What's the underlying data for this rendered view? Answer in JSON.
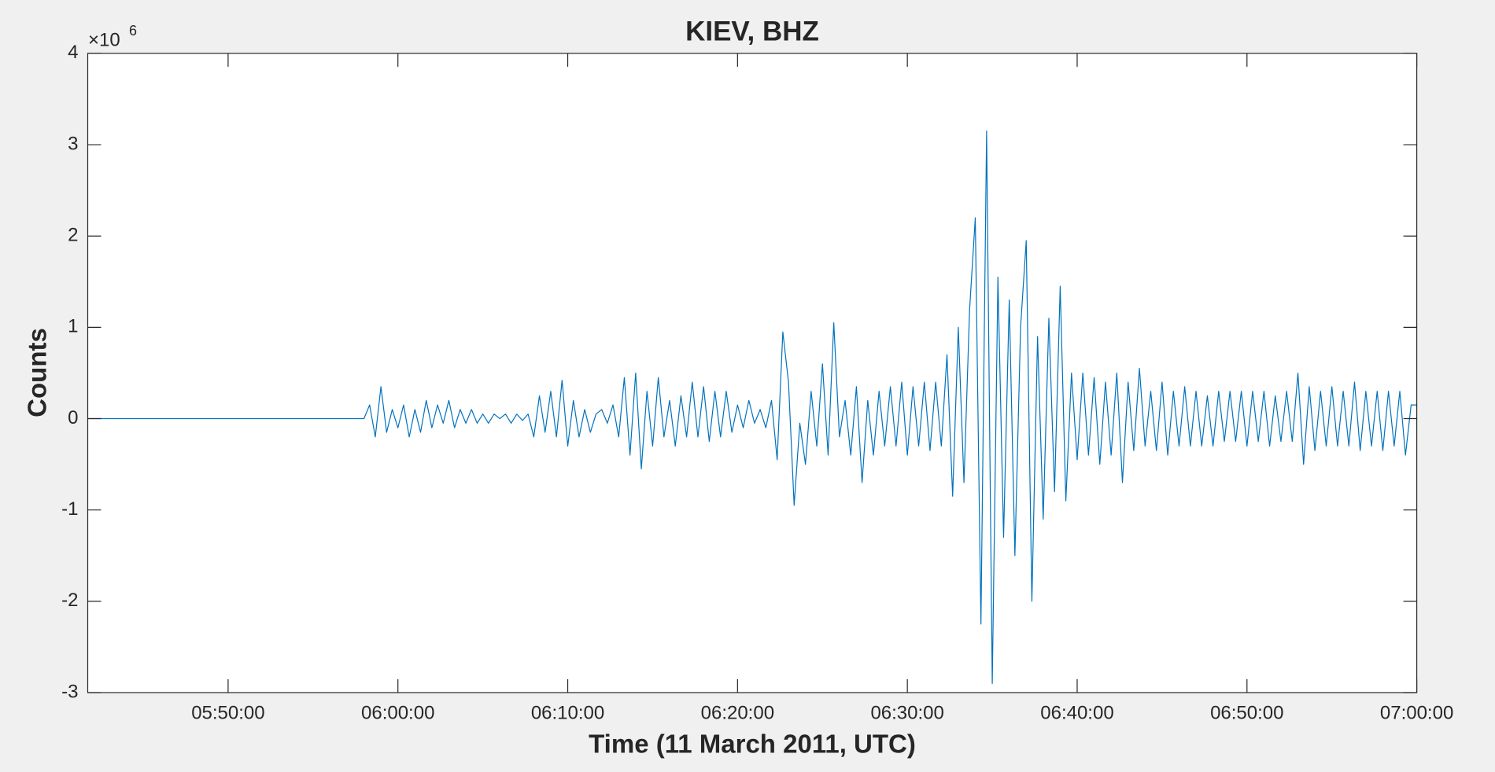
{
  "chart_data": {
    "type": "line",
    "title": "KIEV, BHZ",
    "xlabel": "Time (11 March 2011, UTC)",
    "ylabel": "Counts",
    "y_multiplier": "×10",
    "y_multiplier_exponent": "6",
    "color": "#0072bd",
    "xlim": [
      "05:41:44",
      "07:00:00"
    ],
    "xticks": [
      "05:50:00",
      "06:00:00",
      "06:10:00",
      "06:20:00",
      "06:30:00",
      "06:40:00",
      "06:50:00",
      "07:00:00"
    ],
    "ylim": [
      -3,
      4
    ],
    "yticks": [
      -3,
      -2,
      -1,
      0,
      1,
      2,
      3,
      4
    ],
    "x": [
      "05:41:44",
      "05:58:00",
      "05:58:20",
      "05:58:40",
      "05:59:00",
      "05:59:20",
      "05:59:40",
      "06:00:00",
      "06:00:20",
      "06:00:40",
      "06:01:00",
      "06:01:20",
      "06:01:40",
      "06:02:00",
      "06:02:20",
      "06:02:40",
      "06:03:00",
      "06:03:20",
      "06:03:40",
      "06:04:00",
      "06:04:20",
      "06:04:40",
      "06:05:00",
      "06:05:20",
      "06:05:40",
      "06:06:00",
      "06:06:20",
      "06:06:40",
      "06:07:00",
      "06:07:20",
      "06:07:40",
      "06:08:00",
      "06:08:20",
      "06:08:40",
      "06:09:00",
      "06:09:20",
      "06:09:40",
      "06:10:00",
      "06:10:20",
      "06:10:40",
      "06:11:00",
      "06:11:20",
      "06:11:40",
      "06:12:00",
      "06:12:20",
      "06:12:40",
      "06:13:00",
      "06:13:20",
      "06:13:40",
      "06:14:00",
      "06:14:20",
      "06:14:40",
      "06:15:00",
      "06:15:20",
      "06:15:40",
      "06:16:00",
      "06:16:20",
      "06:16:40",
      "06:17:00",
      "06:17:20",
      "06:17:40",
      "06:18:00",
      "06:18:20",
      "06:18:40",
      "06:19:00",
      "06:19:20",
      "06:19:40",
      "06:20:00",
      "06:20:20",
      "06:20:40",
      "06:21:00",
      "06:21:20",
      "06:21:40",
      "06:22:00",
      "06:22:20",
      "06:22:40",
      "06:23:00",
      "06:23:20",
      "06:23:40",
      "06:24:00",
      "06:24:20",
      "06:24:40",
      "06:25:00",
      "06:25:20",
      "06:25:40",
      "06:26:00",
      "06:26:20",
      "06:26:40",
      "06:27:00",
      "06:27:20",
      "06:27:40",
      "06:28:00",
      "06:28:20",
      "06:28:40",
      "06:29:00",
      "06:29:20",
      "06:29:40",
      "06:30:00",
      "06:30:20",
      "06:30:40",
      "06:31:00",
      "06:31:20",
      "06:31:40",
      "06:32:00",
      "06:32:20",
      "06:32:40",
      "06:33:00",
      "06:33:20",
      "06:33:40",
      "06:34:00",
      "06:34:20",
      "06:34:40",
      "06:35:00",
      "06:35:20",
      "06:35:40",
      "06:36:00",
      "06:36:20",
      "06:36:40",
      "06:37:00",
      "06:37:20",
      "06:37:40",
      "06:38:00",
      "06:38:20",
      "06:38:40",
      "06:39:00",
      "06:39:20",
      "06:39:40",
      "06:40:00",
      "06:40:20",
      "06:40:40",
      "06:41:00",
      "06:41:20",
      "06:41:40",
      "06:42:00",
      "06:42:20",
      "06:42:40",
      "06:43:00",
      "06:43:20",
      "06:43:40",
      "06:44:00",
      "06:44:20",
      "06:44:40",
      "06:45:00",
      "06:45:20",
      "06:45:40",
      "06:46:00",
      "06:46:20",
      "06:46:40",
      "06:47:00",
      "06:47:20",
      "06:47:40",
      "06:48:00",
      "06:48:20",
      "06:48:40",
      "06:49:00",
      "06:49:20",
      "06:49:40",
      "06:50:00",
      "06:50:20",
      "06:50:40",
      "06:51:00",
      "06:51:20",
      "06:51:40",
      "06:52:00",
      "06:52:20",
      "06:52:40",
      "06:53:00",
      "06:53:20",
      "06:53:40",
      "06:54:00",
      "06:54:20",
      "06:54:40",
      "06:55:00",
      "06:55:20",
      "06:55:40",
      "06:56:00",
      "06:56:20",
      "06:56:40",
      "06:57:00",
      "06:57:20",
      "06:57:40",
      "06:58:00",
      "06:58:20",
      "06:58:40",
      "06:59:00",
      "06:59:20",
      "06:59:40",
      "07:00:00"
    ],
    "values": [
      0,
      0,
      0.15,
      -0.2,
      0.35,
      -0.15,
      0.1,
      -0.1,
      0.15,
      -0.2,
      0.1,
      -0.15,
      0.2,
      -0.1,
      0.15,
      -0.05,
      0.2,
      -0.1,
      0.1,
      -0.05,
      0.1,
      -0.05,
      0.05,
      -0.05,
      0.05,
      0,
      0.05,
      -0.05,
      0.05,
      -0.02,
      0.05,
      -0.2,
      0.25,
      -0.15,
      0.3,
      -0.2,
      0.42,
      -0.3,
      0.2,
      -0.2,
      0.1,
      -0.15,
      0.05,
      0.1,
      -0.05,
      0.15,
      -0.2,
      0.45,
      -0.4,
      0.5,
      -0.55,
      0.3,
      -0.3,
      0.45,
      -0.2,
      0.2,
      -0.3,
      0.25,
      -0.2,
      0.4,
      -0.2,
      0.35,
      -0.25,
      0.3,
      -0.2,
      0.3,
      -0.15,
      0.15,
      -0.1,
      0.2,
      -0.05,
      0.1,
      -0.1,
      0.2,
      -0.45,
      0.95,
      0.4,
      -0.95,
      -0.05,
      -0.5,
      0.3,
      -0.3,
      0.6,
      -0.4,
      1.05,
      -0.2,
      0.2,
      -0.4,
      0.35,
      -0.7,
      0.2,
      -0.4,
      0.3,
      -0.3,
      0.35,
      -0.3,
      0.4,
      -0.4,
      0.35,
      -0.3,
      0.4,
      -0.35,
      0.4,
      -0.3,
      0.7,
      -0.85,
      1.0,
      -0.7,
      1.2,
      2.2,
      -2.25,
      3.15,
      -2.9,
      1.55,
      -1.3,
      1.3,
      -1.5,
      1.0,
      1.95,
      -2.0,
      0.9,
      -1.1,
      1.1,
      -0.8,
      1.45,
      -0.9,
      0.5,
      -0.45,
      0.5,
      -0.4,
      0.45,
      -0.5,
      0.4,
      -0.4,
      0.5,
      -0.7,
      0.4,
      -0.35,
      0.55,
      -0.3,
      0.3,
      -0.35,
      0.4,
      -0.4,
      0.3,
      -0.3,
      0.35,
      -0.3,
      0.3,
      -0.3,
      0.25,
      -0.3,
      0.3,
      -0.25,
      0.3,
      -0.25,
      0.3,
      -0.3,
      0.3,
      -0.25,
      0.3,
      -0.3,
      0.25,
      -0.25,
      0.3,
      -0.25,
      0.5,
      -0.5,
      0.35,
      -0.35,
      0.3,
      -0.3,
      0.35,
      -0.3,
      0.3,
      -0.3,
      0.4,
      -0.35,
      0.3,
      -0.3,
      0.3,
      -0.35,
      0.3,
      -0.3,
      0.3,
      -0.4,
      0.15,
      0.15
    ]
  }
}
